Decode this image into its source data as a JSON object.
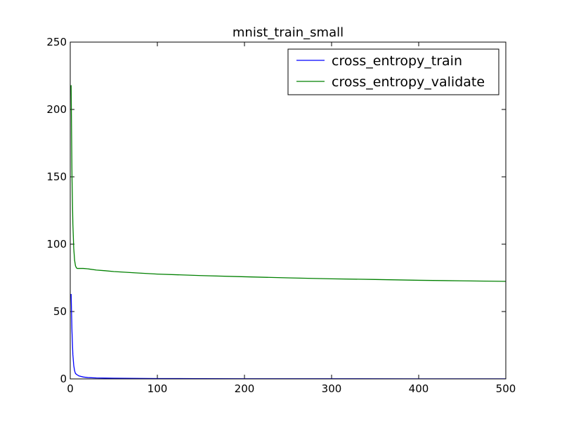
{
  "chart_data": {
    "type": "line",
    "title": "mnist_train_small",
    "xlabel": "",
    "ylabel": "",
    "xlim": [
      0,
      500
    ],
    "ylim": [
      0,
      250
    ],
    "xticks": [
      0,
      100,
      200,
      300,
      400,
      500
    ],
    "yticks": [
      0,
      50,
      100,
      150,
      200,
      250
    ],
    "grid": false,
    "legend_position": "upper-right",
    "series": [
      {
        "name": "cross_entropy_train",
        "color": "#0000ff",
        "points": [
          [
            1,
            63
          ],
          [
            2,
            35
          ],
          [
            3,
            18
          ],
          [
            4,
            10
          ],
          [
            5,
            6
          ],
          [
            6,
            4
          ],
          [
            8,
            3
          ],
          [
            10,
            2.2
          ],
          [
            15,
            1.4
          ],
          [
            20,
            1.0
          ],
          [
            30,
            0.7
          ],
          [
            50,
            0.5
          ],
          [
            75,
            0.35
          ],
          [
            100,
            0.25
          ],
          [
            150,
            0.18
          ],
          [
            200,
            0.13
          ],
          [
            300,
            0.1
          ],
          [
            400,
            0.08
          ],
          [
            500,
            0.06
          ]
        ]
      },
      {
        "name": "cross_entropy_validate",
        "color": "#008000",
        "points": [
          [
            1,
            218
          ],
          [
            2,
            150
          ],
          [
            3,
            115
          ],
          [
            4,
            97
          ],
          [
            5,
            88
          ],
          [
            6,
            84
          ],
          [
            7,
            82.5
          ],
          [
            8,
            82
          ],
          [
            10,
            82
          ],
          [
            15,
            82
          ],
          [
            20,
            81.7
          ],
          [
            30,
            80.8
          ],
          [
            40,
            80.3
          ],
          [
            50,
            79.7
          ],
          [
            75,
            78.7
          ],
          [
            100,
            77.8
          ],
          [
            150,
            76.7
          ],
          [
            200,
            75.8
          ],
          [
            250,
            75.0
          ],
          [
            300,
            74.3
          ],
          [
            350,
            73.8
          ],
          [
            400,
            73.2
          ],
          [
            450,
            72.8
          ],
          [
            500,
            72.4
          ]
        ]
      }
    ]
  }
}
